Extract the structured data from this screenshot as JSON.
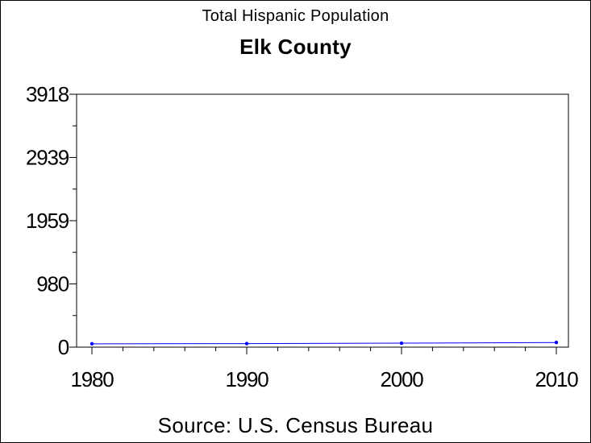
{
  "chart_data": {
    "type": "line",
    "title": "Total Hispanic Population",
    "subtitle": "Elk County",
    "xlabel": "",
    "ylabel": "",
    "footnote": "Source: U.S. Census Bureau",
    "x": [
      1980,
      1990,
      2000,
      2010
    ],
    "x_ticks": [
      "1980",
      "1990",
      "2000",
      "2010"
    ],
    "xlim": [
      1980,
      2010
    ],
    "series": [
      {
        "values": [
          52,
          55,
          62,
          72
        ],
        "color": "#0000ff"
      }
    ],
    "y_ticks": [
      "0",
      "980",
      "1959",
      "2939",
      "3918"
    ],
    "y_tick_values": [
      0,
      980,
      1959,
      2939,
      3918
    ],
    "ylim": [
      0,
      3918
    ],
    "grid": false,
    "legend": "none",
    "colors": {
      "axis": "#000000",
      "line": "#0000ff",
      "background": "#ffffff"
    }
  }
}
